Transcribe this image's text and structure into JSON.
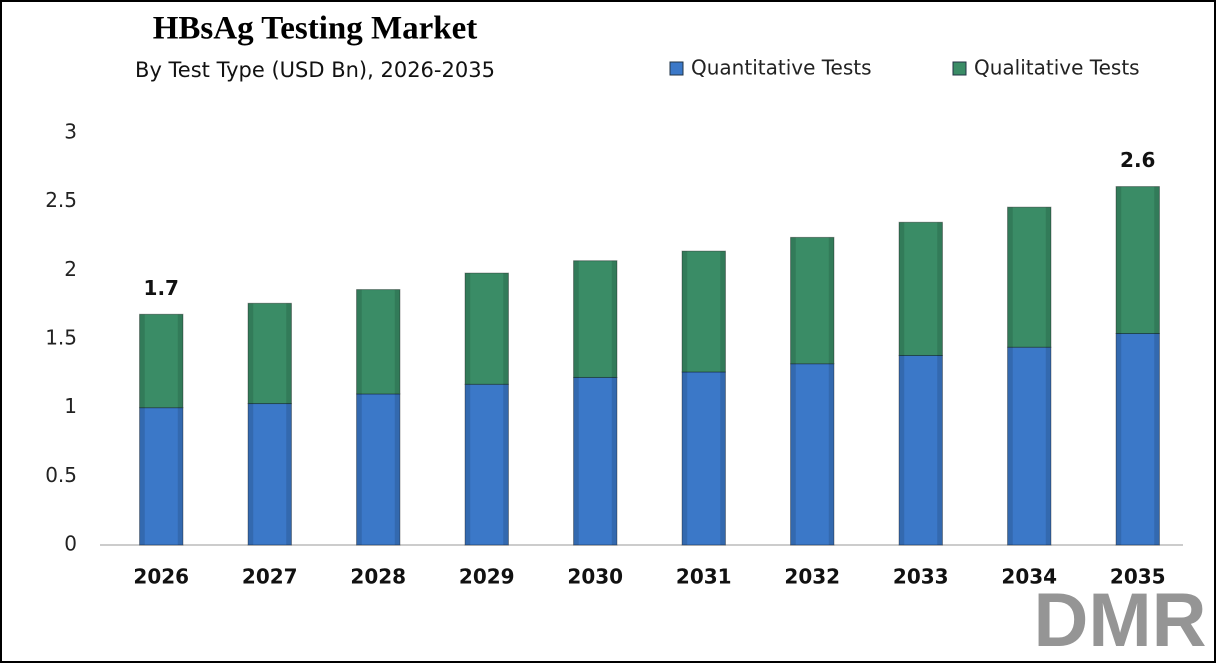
{
  "chart_data": {
    "type": "stacked_bar",
    "title": "HBsAg Testing Market",
    "subtitle": "By Test Type (USD Bn), 2026-2035",
    "categories": [
      "2026",
      "2027",
      "2028",
      "2029",
      "2030",
      "2031",
      "2032",
      "2033",
      "2034",
      "2035"
    ],
    "series": [
      {
        "name": "Quantitative Tests",
        "color": "#3b78c8",
        "values": [
          1.0,
          1.03,
          1.1,
          1.17,
          1.22,
          1.26,
          1.32,
          1.38,
          1.44,
          1.54
        ]
      },
      {
        "name": "Qualitative Tests",
        "color": "#3a8c66",
        "values": [
          0.68,
          0.73,
          0.76,
          0.81,
          0.85,
          0.88,
          0.92,
          0.97,
          1.02,
          1.07
        ]
      }
    ],
    "total_labels": [
      "1.7",
      null,
      null,
      null,
      null,
      null,
      null,
      null,
      null,
      "2.6"
    ],
    "ylim": [
      0,
      3
    ],
    "yticks": [
      0,
      0.5,
      1,
      1.5,
      2,
      2.5,
      3
    ],
    "grid": false,
    "legend": "top-right"
  },
  "logo": "DMR"
}
